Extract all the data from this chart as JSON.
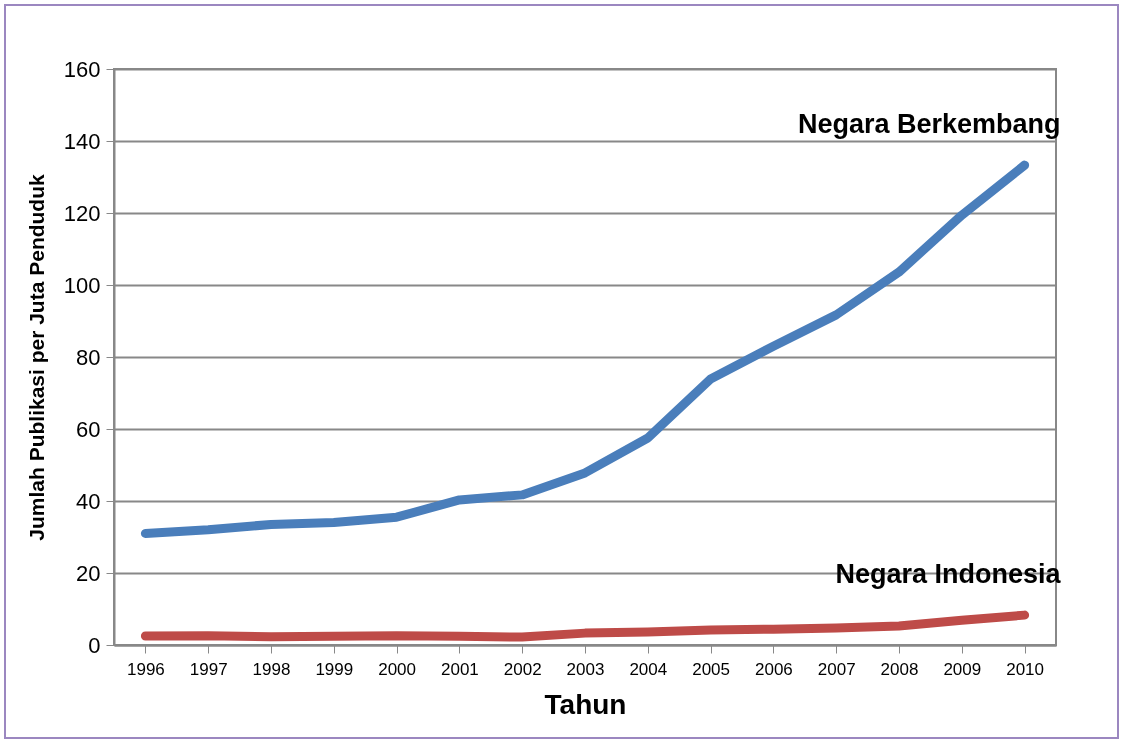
{
  "chart_data": {
    "type": "line",
    "xlabel": "Tahun",
    "ylabel": "Jumlah Publikasi per Juta Penduduk",
    "categories": [
      "1996",
      "1997",
      "1998",
      "1999",
      "2000",
      "2001",
      "2002",
      "2003",
      "2004",
      "2005",
      "2006",
      "2007",
      "2008",
      "2009",
      "2010"
    ],
    "series": [
      {
        "name": "Negara Berkembang",
        "color": "#4a7ebb",
        "values": [
          31,
          32,
          33.5,
          34,
          35.5,
          40.3,
          41.7,
          47.8,
          57.5,
          73.9,
          83,
          91.7,
          103.6,
          119.4,
          133.3
        ]
      },
      {
        "name": "Negara Indonesia",
        "color": "#be4b48",
        "values": [
          2.5,
          2.6,
          2.3,
          2.4,
          2.6,
          2.4,
          2.2,
          3.3,
          3.6,
          4.2,
          4.4,
          4.7,
          5.3,
          6.9,
          8.3
        ]
      }
    ],
    "ylim": [
      0,
      160
    ],
    "yticks": [
      0,
      20,
      40,
      60,
      80,
      100,
      120,
      140,
      160
    ],
    "grid": "y",
    "legend": false,
    "marker": "none",
    "line_style": "solid"
  }
}
